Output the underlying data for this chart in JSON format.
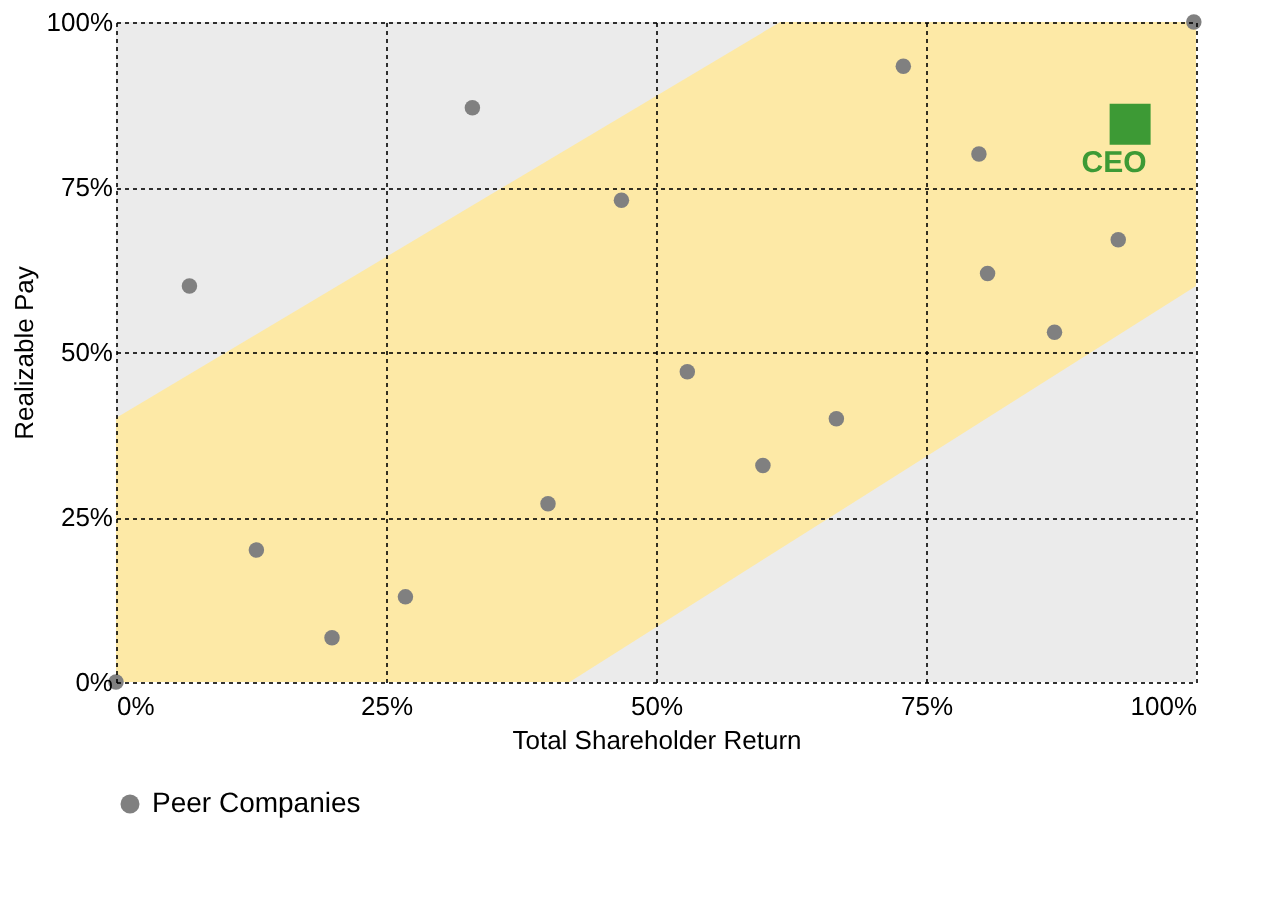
{
  "chart_data": {
    "type": "scatter",
    "xlabel": "Total Shareholder Return",
    "ylabel": "Realizable Pay",
    "xlim": [
      0,
      100
    ],
    "ylim": [
      0,
      100
    ],
    "xticks": [
      {
        "value": 0,
        "label": "0%"
      },
      {
        "value": 25,
        "label": "25%"
      },
      {
        "value": 50,
        "label": "50%"
      },
      {
        "value": 75,
        "label": "75%"
      },
      {
        "value": 100,
        "label": "100%"
      }
    ],
    "yticks": [
      {
        "value": 0,
        "label": "0%"
      },
      {
        "value": 25,
        "label": "25%"
      },
      {
        "value": 50,
        "label": "50%"
      },
      {
        "value": 75,
        "label": "75%"
      },
      {
        "value": 100,
        "label": "100%"
      }
    ],
    "grid": true,
    "legend": "bottom",
    "marker": "circle",
    "series": [
      {
        "type": "area",
        "color": "#fde9a6",
        "marker": "none",
        "x": [
          0,
          61.5,
          100
        ],
        "values": [
          40,
          100,
          100
        ]
      },
      {
        "type": "area",
        "color": "#ebebeb",
        "marker": "none",
        "x": [
          0,
          42,
          100
        ],
        "values": [
          0,
          0,
          60
        ]
      },
      {
        "name": "Peer Companies",
        "color": "#808080",
        "marker": "circle",
        "x": [
          0,
          6.8,
          13,
          20,
          26.8,
          33,
          40,
          46.8,
          52.9,
          59.9,
          66.7,
          72.9,
          79.9,
          80.7,
          86.9,
          92.8,
          99.8
        ],
        "values": [
          0,
          60,
          20,
          6.7,
          12.9,
          87,
          27,
          73,
          47,
          32.8,
          39.9,
          93.3,
          80,
          61.9,
          53,
          67,
          100
        ]
      },
      {
        "name": "CEO",
        "color": "#3d9a35",
        "marker": "square",
        "x": [
          93.9
        ],
        "values": [
          84.5
        ]
      }
    ]
  }
}
